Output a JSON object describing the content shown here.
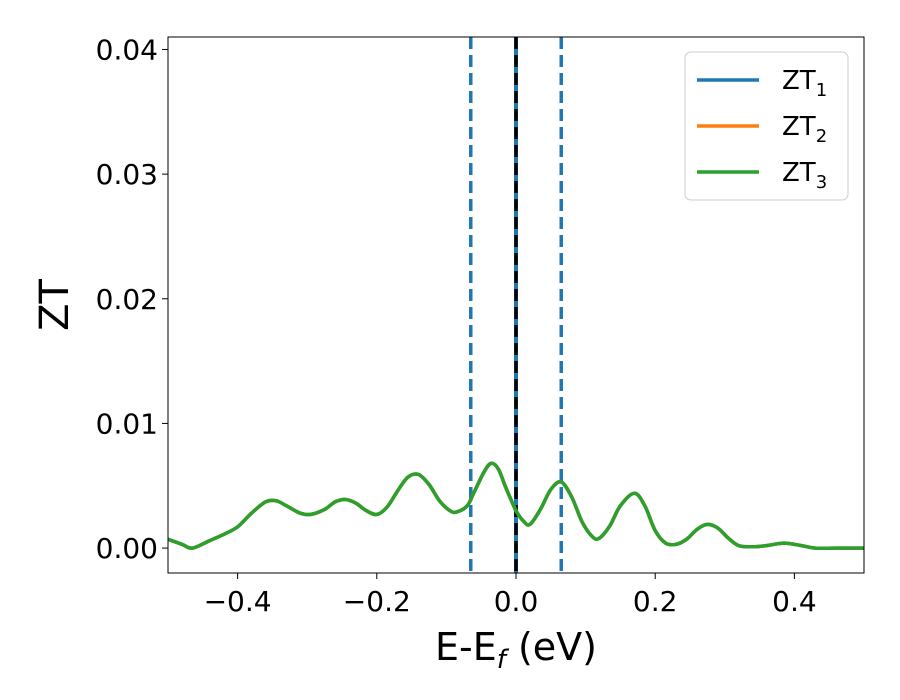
{
  "chart_data": {
    "type": "line",
    "xlabel": "E-E",
    "xlabel_sub": "f",
    "xlabel_unit": " (eV)",
    "ylabel": "ZT",
    "xlim": [
      -0.5,
      0.5
    ],
    "ylim": [
      -0.002,
      0.041
    ],
    "xticks": [
      -0.4,
      -0.2,
      0.0,
      0.2,
      0.4
    ],
    "xtick_labels": [
      "−0.4",
      "−0.2",
      "0.0",
      "0.2",
      "0.4"
    ],
    "yticks": [
      0.0,
      0.01,
      0.02,
      0.03,
      0.04
    ],
    "ytick_labels": [
      "0.00",
      "0.01",
      "0.02",
      "0.03",
      "0.04"
    ],
    "grid": false,
    "legend_position": "top-right",
    "series": [
      {
        "name": "ZT",
        "name_sub": "1",
        "color": "#1f77b4"
      },
      {
        "name": "ZT",
        "name_sub": "2",
        "color": "#ff7f0e"
      },
      {
        "name": "ZT",
        "name_sub": "3",
        "color": "#2ca02c"
      }
    ],
    "curve": {
      "x": [
        -0.5,
        -0.48,
        -0.465,
        -0.44,
        -0.42,
        -0.4,
        -0.38,
        -0.36,
        -0.345,
        -0.33,
        -0.31,
        -0.295,
        -0.275,
        -0.26,
        -0.245,
        -0.23,
        -0.215,
        -0.2,
        -0.185,
        -0.17,
        -0.155,
        -0.14,
        -0.125,
        -0.11,
        -0.095,
        -0.085,
        -0.07,
        -0.06,
        -0.045,
        -0.035,
        -0.025,
        -0.015,
        -0.005,
        0.0,
        0.01,
        0.02,
        0.035,
        0.05,
        0.065,
        0.08,
        0.095,
        0.11,
        0.12,
        0.135,
        0.15,
        0.17,
        0.185,
        0.2,
        0.215,
        0.23,
        0.245,
        0.26,
        0.275,
        0.29,
        0.305,
        0.32,
        0.34,
        0.36,
        0.385,
        0.41,
        0.43,
        0.46,
        0.5
      ],
      "y": [
        0.0007,
        0.0003,
        0.0,
        0.0006,
        0.0011,
        0.0017,
        0.0028,
        0.0037,
        0.0038,
        0.0034,
        0.0028,
        0.0027,
        0.0031,
        0.0037,
        0.0039,
        0.0036,
        0.003,
        0.0027,
        0.0033,
        0.0046,
        0.0057,
        0.0059,
        0.0051,
        0.0038,
        0.003,
        0.0029,
        0.0034,
        0.0045,
        0.0062,
        0.0068,
        0.0063,
        0.0049,
        0.0036,
        0.003,
        0.0022,
        0.0019,
        0.0031,
        0.0047,
        0.0053,
        0.0041,
        0.0021,
        0.0009,
        0.0008,
        0.0018,
        0.0034,
        0.0044,
        0.0034,
        0.0014,
        0.0004,
        0.0003,
        0.0007,
        0.0015,
        0.0019,
        0.0016,
        0.0008,
        0.0002,
        0.0001,
        0.0002,
        0.0004,
        0.0002,
        0.0,
        0.0,
        0.0
      ]
    },
    "vlines": [
      {
        "x": -0.065,
        "style": "dashed",
        "color": "#1f77b4"
      },
      {
        "x": 0.065,
        "style": "dashed",
        "color": "#1f77b4"
      },
      {
        "x": 0.0,
        "style": "solid",
        "color": "#1f77b4"
      },
      {
        "x": 0.0,
        "style": "dashed",
        "color": "#000000"
      }
    ]
  }
}
